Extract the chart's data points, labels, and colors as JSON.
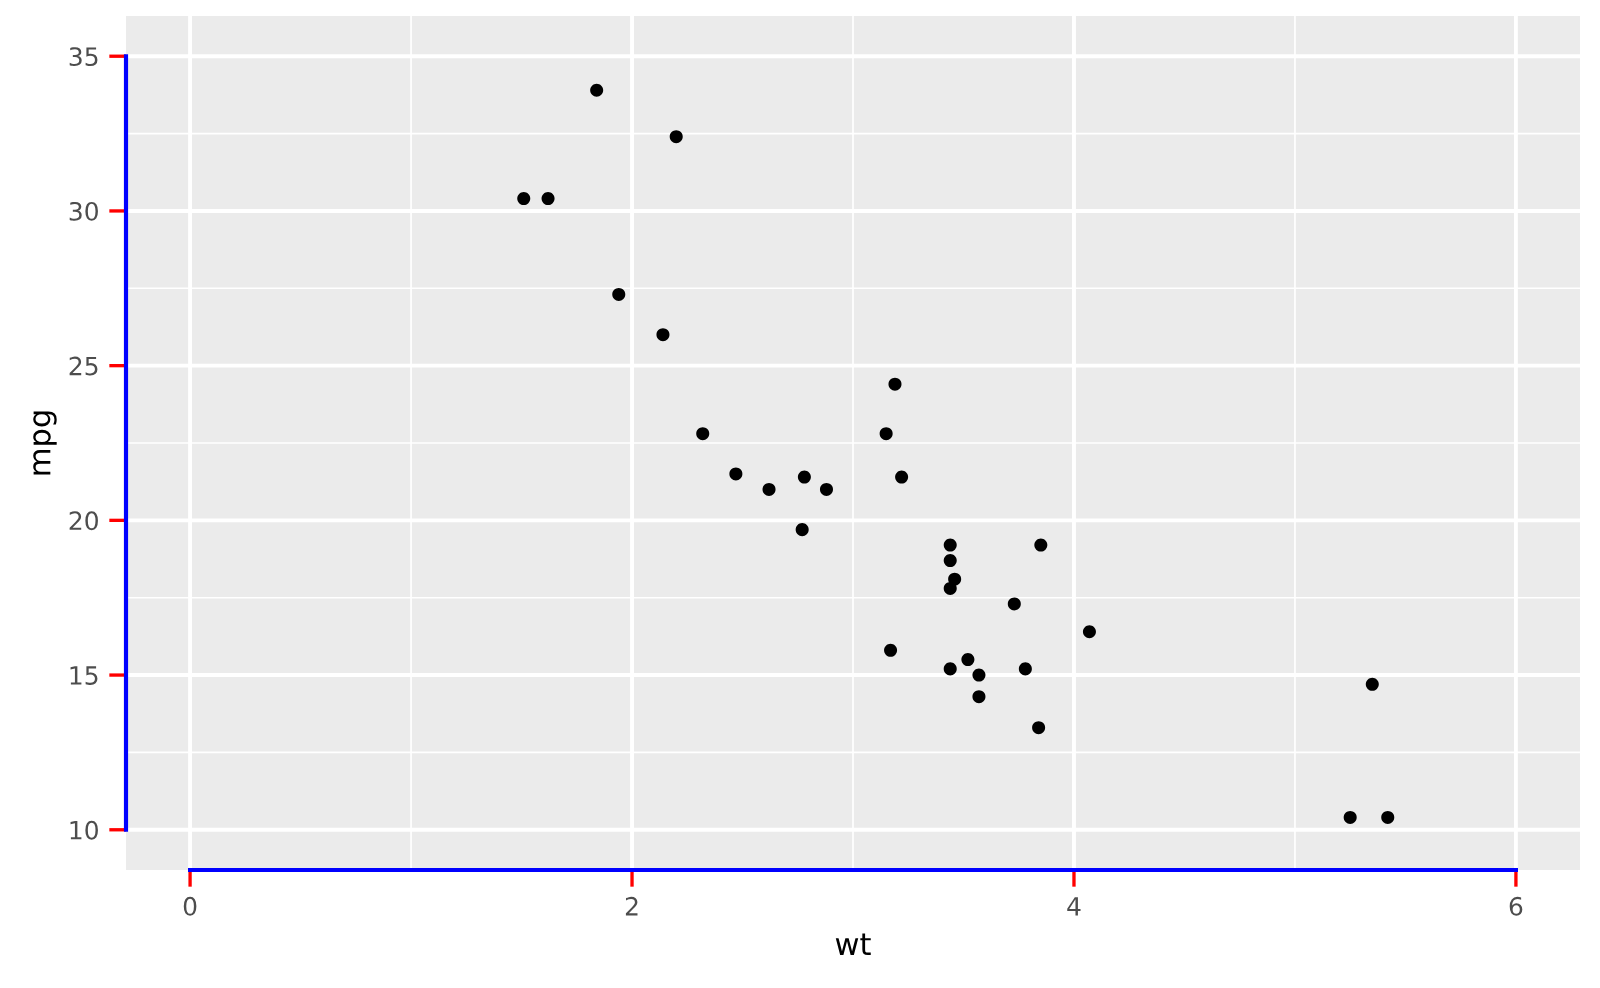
{
  "chart_data": {
    "type": "scatter",
    "xlabel": "wt",
    "ylabel": "mpg",
    "x": [
      2.62,
      2.88,
      2.32,
      3.22,
      3.44,
      3.46,
      3.57,
      3.19,
      3.15,
      3.44,
      3.44,
      4.07,
      3.73,
      3.78,
      5.25,
      5.42,
      5.35,
      2.2,
      1.62,
      1.84,
      2.47,
      3.52,
      3.44,
      3.84,
      3.85,
      1.94,
      2.14,
      1.51,
      3.17,
      2.77,
      3.57,
      2.78
    ],
    "series": [
      {
        "color": "#000000",
        "values": [
          21.0,
          21.0,
          22.8,
          21.4,
          18.7,
          18.1,
          14.3,
          24.4,
          22.8,
          19.2,
          17.8,
          16.4,
          17.3,
          15.2,
          10.4,
          10.4,
          14.7,
          32.4,
          30.4,
          33.9,
          21.5,
          15.5,
          15.2,
          13.3,
          19.2,
          27.3,
          26.0,
          30.4,
          15.8,
          19.7,
          15.0,
          21.4
        ]
      }
    ],
    "xlim": [
      -0.29,
      6.29
    ],
    "ylim": [
      8.7,
      36.3
    ],
    "xticks": [
      0,
      2,
      4,
      6
    ],
    "yticks": [
      10,
      15,
      20,
      25,
      30,
      35
    ],
    "grid": true,
    "marker": "circle",
    "legend": false
  }
}
